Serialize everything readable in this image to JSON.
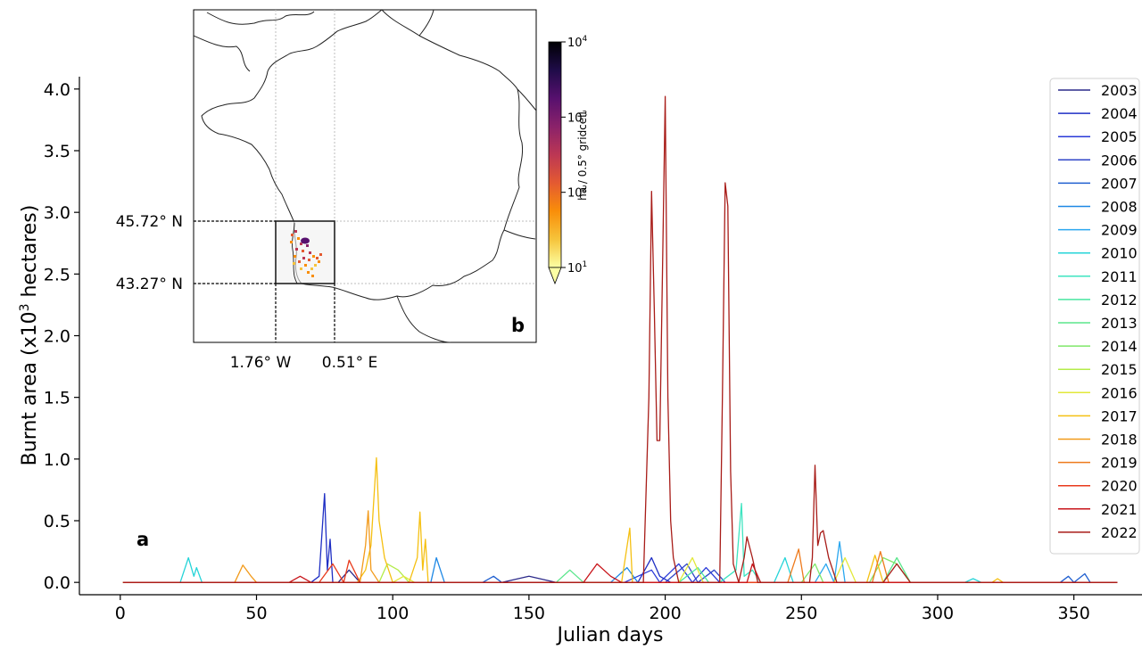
{
  "chart_data": [
    {
      "type": "line",
      "panel_label": "a",
      "xlabel": "Julian days",
      "ylabel": "Burnt area (x10",
      "ylabel_sup": "3",
      "ylabel_tail": " hectares)",
      "xlim": [
        -15,
        375
      ],
      "ylim": [
        -0.1,
        4.1
      ],
      "xticks": [
        0,
        50,
        100,
        150,
        200,
        250,
        300,
        350
      ],
      "xtick_labels": [
        "0",
        "50",
        "100",
        "150",
        "200",
        "250",
        "300",
        "350"
      ],
      "yticks": [
        0.0,
        0.5,
        1.0,
        1.5,
        2.0,
        2.5,
        3.0,
        3.5,
        4.0
      ],
      "ytick_labels": [
        "0.0",
        "0.5",
        "1.0",
        "1.5",
        "2.0",
        "2.5",
        "3.0",
        "3.5",
        "4.0"
      ],
      "grid": false,
      "legend_position": "right",
      "series": [
        {
          "name": "2003",
          "color": "#2c2a8a",
          "points": [
            [
              1,
              0
            ],
            [
              80,
              0
            ],
            [
              84,
              0.1
            ],
            [
              88,
              0
            ],
            [
              140,
              0
            ],
            [
              150,
              0.05
            ],
            [
              160,
              0
            ],
            [
              366,
              0
            ]
          ]
        },
        {
          "name": "2004",
          "color": "#1f2fc4",
          "points": [
            [
              1,
              0
            ],
            [
              70,
              0
            ],
            [
              73,
              0.05
            ],
            [
              75,
              0.72
            ],
            [
              76,
              0.1
            ],
            [
              77,
              0.35
            ],
            [
              78,
              0
            ],
            [
              190,
              0
            ],
            [
              195,
              0.2
            ],
            [
              198,
              0.05
            ],
            [
              202,
              0
            ],
            [
              366,
              0
            ]
          ]
        },
        {
          "name": "2005",
          "color": "#2a3ad8",
          "points": [
            [
              1,
              0
            ],
            [
              185,
              0
            ],
            [
              195,
              0.1
            ],
            [
              198,
              0
            ],
            [
              205,
              0.15
            ],
            [
              210,
              0
            ],
            [
              215,
              0.12
            ],
            [
              220,
              0
            ],
            [
              366,
              0
            ]
          ]
        },
        {
          "name": "2006",
          "color": "#3046c8",
          "points": [
            [
              1,
              0
            ],
            [
              200,
              0
            ],
            [
              208,
              0.15
            ],
            [
              212,
              0
            ],
            [
              218,
              0.1
            ],
            [
              222,
              0
            ],
            [
              366,
              0
            ]
          ]
        },
        {
          "name": "2007",
          "color": "#1f5fd0",
          "points": [
            [
              1,
              0
            ],
            [
              133,
              0
            ],
            [
              137,
              0.05
            ],
            [
              140,
              0
            ],
            [
              345,
              0
            ],
            [
              348,
              0.05
            ],
            [
              350,
              0
            ],
            [
              354,
              0.07
            ],
            [
              356,
              0
            ],
            [
              366,
              0
            ]
          ]
        },
        {
          "name": "2008",
          "color": "#1e88e5",
          "points": [
            [
              1,
              0
            ],
            [
              114,
              0
            ],
            [
              116,
              0.2
            ],
            [
              119,
              0
            ],
            [
              180,
              0
            ],
            [
              186,
              0.12
            ],
            [
              190,
              0
            ],
            [
              366,
              0
            ]
          ]
        },
        {
          "name": "2009",
          "color": "#2aa7ef",
          "points": [
            [
              1,
              0
            ],
            [
              255,
              0
            ],
            [
              259,
              0.15
            ],
            [
              262,
              0
            ],
            [
              264,
              0.33
            ],
            [
              266,
              0
            ],
            [
              366,
              0
            ]
          ]
        },
        {
          "name": "2010",
          "color": "#25d4d8",
          "points": [
            [
              1,
              0
            ],
            [
              22,
              0
            ],
            [
              25,
              0.2
            ],
            [
              27,
              0.05
            ],
            [
              28,
              0.12
            ],
            [
              30,
              0
            ],
            [
              240,
              0
            ],
            [
              244,
              0.2
            ],
            [
              247,
              0
            ],
            [
              310,
              0
            ],
            [
              313,
              0.03
            ],
            [
              316,
              0
            ],
            [
              366,
              0
            ]
          ]
        },
        {
          "name": "2011",
          "color": "#3ee4c0",
          "points": [
            [
              1,
              0
            ],
            [
              220,
              0
            ],
            [
              226,
              0.1
            ],
            [
              228,
              0.64
            ],
            [
              229,
              0.05
            ],
            [
              232,
              0.1
            ],
            [
              235,
              0
            ],
            [
              366,
              0
            ]
          ]
        },
        {
          "name": "2012",
          "color": "#48e6a0",
          "points": [
            [
              1,
              0
            ],
            [
              205,
              0
            ],
            [
              212,
              0.12
            ],
            [
              216,
              0
            ],
            [
              366,
              0
            ]
          ]
        },
        {
          "name": "2013",
          "color": "#5ae68c",
          "points": [
            [
              1,
              0
            ],
            [
              160,
              0
            ],
            [
              165,
              0.1
            ],
            [
              170,
              0
            ],
            [
              280,
              0
            ],
            [
              285,
              0.2
            ],
            [
              290,
              0
            ],
            [
              366,
              0
            ]
          ]
        },
        {
          "name": "2014",
          "color": "#7fe86a",
          "points": [
            [
              1,
              0
            ],
            [
              250,
              0
            ],
            [
              255,
              0.15
            ],
            [
              258,
              0
            ],
            [
              275,
              0
            ],
            [
              280,
              0.2
            ],
            [
              285,
              0.15
            ],
            [
              290,
              0
            ],
            [
              366,
              0
            ]
          ]
        },
        {
          "name": "2015",
          "color": "#b4ec4a",
          "points": [
            [
              1,
              0
            ],
            [
              95,
              0
            ],
            [
              98,
              0.15
            ],
            [
              102,
              0.1
            ],
            [
              106,
              0
            ],
            [
              366,
              0
            ]
          ]
        },
        {
          "name": "2016",
          "color": "#e2e83a",
          "points": [
            [
              1,
              0
            ],
            [
              100,
              0
            ],
            [
              104,
              0.05
            ],
            [
              108,
              0
            ],
            [
              205,
              0
            ],
            [
              210,
              0.2
            ],
            [
              214,
              0
            ],
            [
              262,
              0
            ],
            [
              266,
              0.2
            ],
            [
              270,
              0
            ],
            [
              366,
              0
            ]
          ]
        },
        {
          "name": "2017",
          "color": "#f5c012",
          "points": [
            [
              1,
              0
            ],
            [
              87,
              0
            ],
            [
              90,
              0.1
            ],
            [
              92,
              0.3
            ],
            [
              94,
              1.01
            ],
            [
              95,
              0.5
            ],
            [
              97,
              0.2
            ],
            [
              100,
              0
            ],
            [
              106,
              0
            ],
            [
              109,
              0.2
            ],
            [
              110,
              0.57
            ],
            [
              111,
              0.1
            ],
            [
              112,
              0.35
            ],
            [
              113,
              0
            ],
            [
              184,
              0
            ],
            [
              187,
              0.44
            ],
            [
              188,
              0
            ],
            [
              274,
              0
            ],
            [
              277,
              0.22
            ],
            [
              280,
              0
            ],
            [
              320,
              0
            ],
            [
              322,
              0.03
            ],
            [
              324,
              0
            ],
            [
              366,
              0
            ]
          ]
        },
        {
          "name": "2018",
          "color": "#f29a1a",
          "points": [
            [
              1,
              0
            ],
            [
              42,
              0
            ],
            [
              45,
              0.14
            ],
            [
              48,
              0.05
            ],
            [
              50,
              0
            ],
            [
              88,
              0
            ],
            [
              90,
              0.3
            ],
            [
              91,
              0.58
            ],
            [
              92,
              0.1
            ],
            [
              95,
              0
            ],
            [
              366,
              0
            ]
          ]
        },
        {
          "name": "2019",
          "color": "#ee7a1c",
          "points": [
            [
              1,
              0
            ],
            [
              245,
              0
            ],
            [
              249,
              0.27
            ],
            [
              251,
              0
            ],
            [
              276,
              0
            ],
            [
              279,
              0.25
            ],
            [
              282,
              0
            ],
            [
              366,
              0
            ]
          ]
        },
        {
          "name": "2020",
          "color": "#e83a1c",
          "points": [
            [
              1,
              0
            ],
            [
              73,
              0
            ],
            [
              78,
              0.15
            ],
            [
              82,
              0
            ],
            [
              84,
              0.18
            ],
            [
              88,
              0
            ],
            [
              366,
              0
            ]
          ]
        },
        {
          "name": "2021",
          "color": "#c8141a",
          "points": [
            [
              1,
              0
            ],
            [
              62,
              0
            ],
            [
              66,
              0.05
            ],
            [
              70,
              0
            ],
            [
              170,
              0
            ],
            [
              175,
              0.15
            ],
            [
              180,
              0.05
            ],
            [
              184,
              0
            ],
            [
              230,
              0
            ],
            [
              232,
              0.15
            ],
            [
              235,
              0
            ],
            [
              366,
              0
            ]
          ]
        },
        {
          "name": "2022",
          "color": "#a81c18",
          "points": [
            [
              1,
              0
            ],
            [
              192,
              0
            ],
            [
              194,
              1.5
            ],
            [
              195,
              3.17
            ],
            [
              196,
              2.2
            ],
            [
              197,
              1.15
            ],
            [
              198,
              1.15
            ],
            [
              199,
              2.5
            ],
            [
              200,
              3.94
            ],
            [
              201,
              1.5
            ],
            [
              202,
              0.5
            ],
            [
              203,
              0.2
            ],
            [
              205,
              0
            ],
            [
              220,
              0
            ],
            [
              221,
              1.5
            ],
            [
              222,
              3.24
            ],
            [
              223,
              3.05
            ],
            [
              224,
              0.9
            ],
            [
              225,
              0.15
            ],
            [
              227,
              0
            ],
            [
              229,
              0.2
            ],
            [
              230,
              0.37
            ],
            [
              232,
              0.2
            ],
            [
              234,
              0
            ],
            [
              253,
              0
            ],
            [
              254,
              0.2
            ],
            [
              255,
              0.95
            ],
            [
              256,
              0.3
            ],
            [
              257,
              0.4
            ],
            [
              258,
              0.42
            ],
            [
              260,
              0.2
            ],
            [
              263,
              0
            ],
            [
              280,
              0
            ],
            [
              285,
              0.15
            ],
            [
              290,
              0
            ],
            [
              366,
              0
            ]
          ]
        }
      ]
    },
    {
      "type": "map",
      "panel_label": "b",
      "lat_labels": [
        "45.72° N",
        "43.27° N"
      ],
      "lon_labels": [
        "1.76° W",
        "0.51° E"
      ],
      "colorbar": {
        "label": "ha / 0.5° gridcell",
        "scale": "log",
        "ticks": [
          {
            "base": "10",
            "exp": "4"
          },
          {
            "base": "10",
            "exp": "3"
          },
          {
            "base": "10",
            "exp": "2"
          },
          {
            "base": "10",
            "exp": "1"
          }
        ],
        "colormap": [
          "#fcffa4",
          "#f6c43b",
          "#f98e09",
          "#e45a31",
          "#bc3754",
          "#8a226a",
          "#57106e",
          "#1f0c48",
          "#000004"
        ]
      }
    }
  ]
}
